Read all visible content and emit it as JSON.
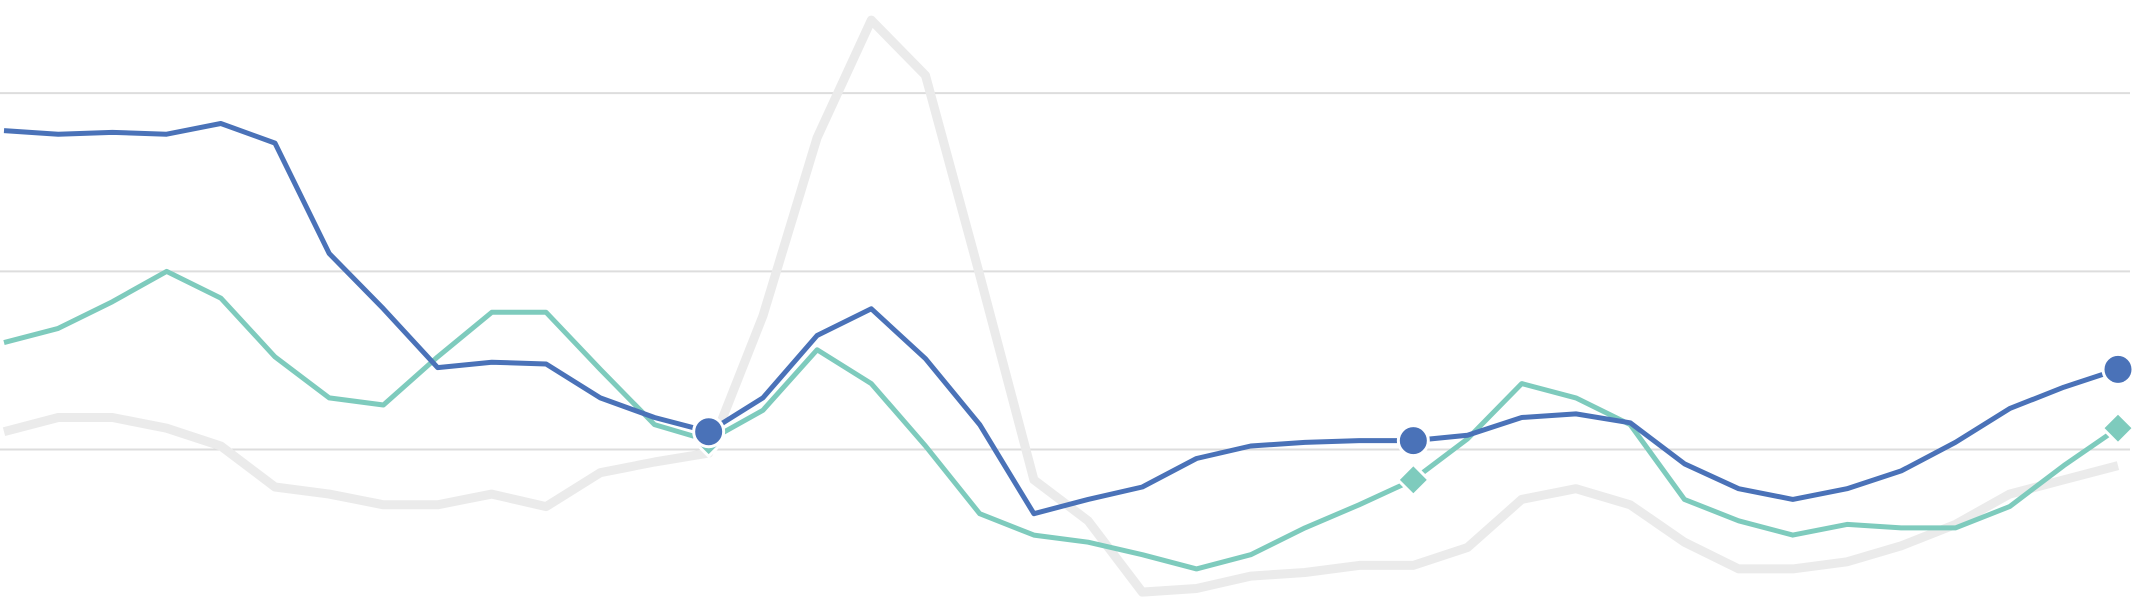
{
  "chart_data": {
    "type": "line",
    "x": [
      0,
      1,
      2,
      3,
      4,
      5,
      6,
      7,
      8,
      9,
      10,
      11,
      12,
      13,
      14,
      15,
      16,
      17,
      18,
      19,
      20,
      21,
      22,
      23,
      24,
      25,
      26,
      27,
      28,
      29,
      30,
      31,
      32,
      33,
      34,
      35,
      36,
      37,
      38,
      39
    ],
    "xlim": [
      0,
      39
    ],
    "ylim": [
      0.15,
      3.45
    ],
    "yticks": [
      1,
      2,
      3
    ],
    "grid": true,
    "markers": [
      13,
      26,
      39
    ],
    "series": [
      {
        "color": "#ebebeb",
        "width": 9,
        "values": [
          1.1,
          1.18,
          1.18,
          1.12,
          1.02,
          0.79,
          0.75,
          0.69,
          0.69,
          0.75,
          0.68,
          0.87,
          0.93,
          0.98,
          1.75,
          2.75,
          3.41,
          3.1,
          1.98,
          0.83,
          0.6,
          0.2,
          0.22,
          0.29,
          0.31,
          0.35,
          0.35,
          0.45,
          0.72,
          0.78,
          0.69,
          0.48,
          0.33,
          0.33,
          0.37,
          0.46,
          0.58,
          0.75,
          0.83,
          0.91
        ]
      },
      {
        "color": "#7ecbbd",
        "width": 5,
        "marker": "diamond",
        "values": [
          1.6,
          1.68,
          1.83,
          2.0,
          1.85,
          1.52,
          1.29,
          1.25,
          1.52,
          1.77,
          1.77,
          1.45,
          1.14,
          1.05,
          1.22,
          1.56,
          1.37,
          1.02,
          0.64,
          0.52,
          0.48,
          0.41,
          0.33,
          0.41,
          0.56,
          0.69,
          0.83,
          1.06,
          1.37,
          1.29,
          1.14,
          0.72,
          0.6,
          0.52,
          0.58,
          0.56,
          0.56,
          0.68,
          0.91,
          1.12
        ]
      },
      {
        "color": "#4a72b8",
        "width": 5,
        "marker": "circle",
        "values": [
          2.79,
          2.77,
          2.78,
          2.77,
          2.83,
          2.72,
          2.1,
          1.79,
          1.46,
          1.49,
          1.48,
          1.29,
          1.18,
          1.1,
          1.29,
          1.64,
          1.79,
          1.51,
          1.14,
          0.64,
          0.72,
          0.79,
          0.95,
          1.02,
          1.04,
          1.05,
          1.05,
          1.08,
          1.18,
          1.2,
          1.15,
          0.92,
          0.78,
          0.72,
          0.78,
          0.88,
          1.04,
          1.23,
          1.35,
          1.45
        ]
      }
    ]
  }
}
